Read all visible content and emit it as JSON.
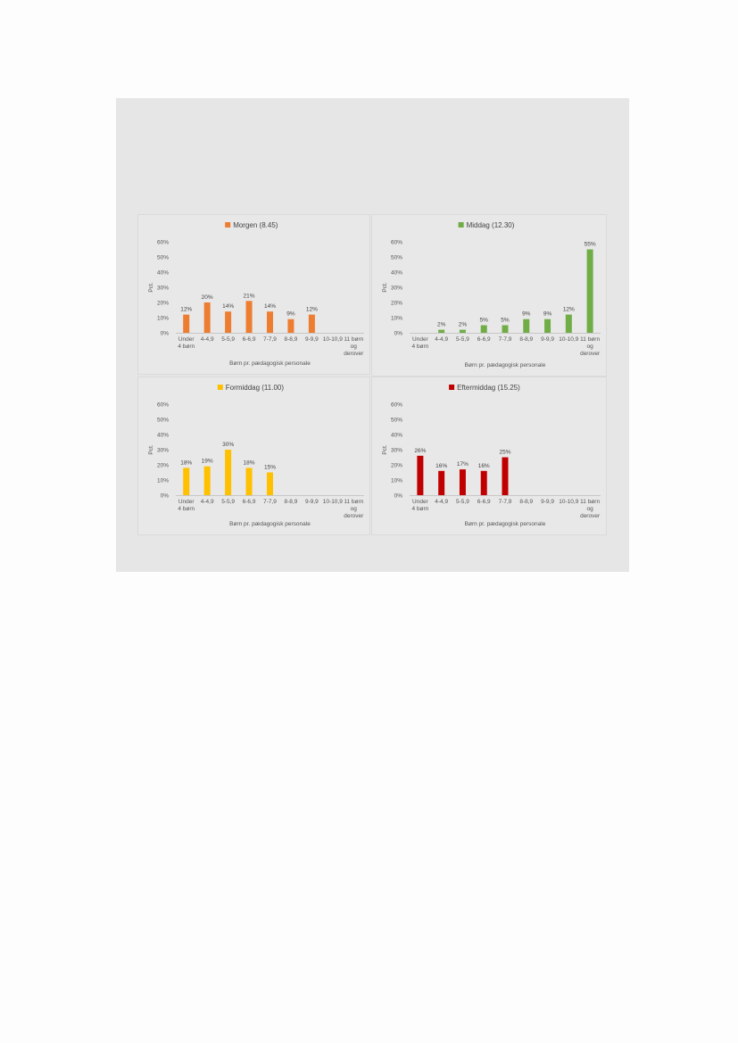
{
  "chart_data": [
    {
      "type": "bar",
      "title": "Morgen (8.45)",
      "color": "#ed7d31",
      "xlabel": "Børn pr. pædagogisk personale",
      "ylabel": "Pct.",
      "ylim": [
        0,
        60
      ],
      "yticks": [
        "0%",
        "10%",
        "20%",
        "30%",
        "40%",
        "50%",
        "60%"
      ],
      "categories": [
        "Under 4 børn",
        "4-4,9",
        "5-5,9",
        "6-6,9",
        "7-7,9",
        "8-8,9",
        "9-9,9",
        "10-10,9",
        "11 børn og derover"
      ],
      "values": [
        12,
        20,
        14,
        21,
        14,
        9,
        12,
        null,
        null
      ],
      "labels": [
        "12%",
        "20%",
        "14%",
        "21%",
        "14%",
        "9%",
        "12%",
        "",
        ""
      ],
      "grid": false,
      "legend": "top-center"
    },
    {
      "type": "bar",
      "title": "Middag (12.30)",
      "color": "#70ad47",
      "xlabel": "Børn pr. pædagogisk personale",
      "ylabel": "Pct.",
      "ylim": [
        0,
        60
      ],
      "yticks": [
        "0%",
        "10%",
        "20%",
        "30%",
        "40%",
        "50%",
        "60%"
      ],
      "categories": [
        "Under 4 børn",
        "4-4,9",
        "5-5,9",
        "6-6,9",
        "7-7,9",
        "8-8,9",
        "9-9,9",
        "10-10,9",
        "11 børn og derover"
      ],
      "values": [
        null,
        2,
        2,
        5,
        5,
        9,
        9,
        12,
        55
      ],
      "labels": [
        "",
        "2%",
        "2%",
        "5%",
        "5%",
        "9%",
        "9%",
        "12%",
        "55%"
      ],
      "grid": false,
      "legend": "top-center"
    },
    {
      "type": "bar",
      "title": "Formiddag (11.00)",
      "color": "#ffc000",
      "xlabel": "Børn pr. pædagogisk personale",
      "ylabel": "Pct.",
      "ylim": [
        0,
        60
      ],
      "yticks": [
        "0%",
        "10%",
        "20%",
        "30%",
        "40%",
        "50%",
        "60%"
      ],
      "categories": [
        "Under 4 børn",
        "4-4,9",
        "5-5,9",
        "6-6,9",
        "7-7,9",
        "8-8,9",
        "9-9,9",
        "10-10,9",
        "11 børn og derover"
      ],
      "values": [
        18,
        19,
        30,
        18,
        15,
        null,
        null,
        null,
        null
      ],
      "labels": [
        "18%",
        "19%",
        "30%",
        "18%",
        "15%",
        "",
        "",
        "",
        ""
      ],
      "grid": false,
      "legend": "top-center"
    },
    {
      "type": "bar",
      "title": "Eftermiddag (15.25)",
      "color": "#c00000",
      "xlabel": "Børn pr. pædagogisk personale",
      "ylabel": "Pct.",
      "ylim": [
        0,
        60
      ],
      "yticks": [
        "0%",
        "10%",
        "20%",
        "30%",
        "40%",
        "50%",
        "60%"
      ],
      "categories": [
        "Under 4 børn",
        "4-4,9",
        "5-5,9",
        "6-6,9",
        "7-7,9",
        "8-8,9",
        "9-9,9",
        "10-10,9",
        "11 børn og derover"
      ],
      "values": [
        26,
        16,
        17,
        16,
        25,
        null,
        null,
        null,
        null
      ],
      "labels": [
        "26%",
        "16%",
        "17%",
        "16%",
        "25%",
        "",
        "",
        "",
        ""
      ],
      "grid": false,
      "legend": "top-center"
    }
  ]
}
